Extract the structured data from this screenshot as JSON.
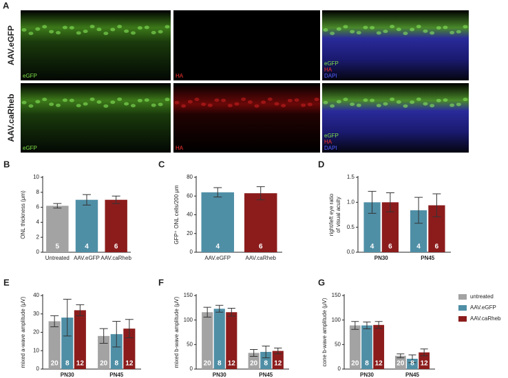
{
  "figure_a": {
    "panel": "A",
    "rows": [
      "AAV.eGFP",
      "AAV.caRheb"
    ],
    "labels": [
      [
        [
          "eGFP"
        ],
        [
          "HA"
        ],
        [
          "eGFP",
          "HA",
          "DAPI"
        ]
      ],
      [
        [
          "eGFP"
        ],
        [
          "HA"
        ],
        [
          "eGFP",
          "HA",
          "DAPI"
        ]
      ]
    ]
  },
  "chart_data": [
    {
      "type": "bar",
      "panel": "B",
      "ylabel": [
        "ONL thickness (μm)"
      ],
      "categories": [
        "Untreated",
        "AAV.eGFP",
        "AAV.caRheb"
      ],
      "values": [
        6.2,
        7.0,
        7.0
      ],
      "errors": [
        0.3,
        0.7,
        0.5
      ],
      "n": [
        5,
        4,
        6
      ],
      "colors": [
        "#a3a3a3",
        "#4f8fa6",
        "#8c1c1c"
      ],
      "ylim": [
        0,
        10
      ],
      "yticks": [
        0,
        2,
        4,
        6,
        8,
        10
      ]
    },
    {
      "type": "bar",
      "panel": "C",
      "ylabel": [
        "GFP⁺ ONL cells/200 μm"
      ],
      "categories": [
        "AAV.eGFP",
        "AAV.caRheb"
      ],
      "values": [
        64,
        63
      ],
      "errors": [
        5,
        7
      ],
      "n": [
        4,
        6
      ],
      "colors": [
        "#4f8fa6",
        "#8c1c1c"
      ],
      "ylim": [
        0,
        80
      ],
      "yticks": [
        0,
        20,
        40,
        60,
        80
      ]
    },
    {
      "type": "grouped-bar",
      "panel": "D",
      "ylabel": [
        "right/left eye ratio",
        "of visual acuity"
      ],
      "categories": [
        "PN30",
        "PN45"
      ],
      "series": [
        {
          "color": "#4f8fa6",
          "values": [
            1.0,
            0.84
          ],
          "errors": [
            0.22,
            0.26
          ],
          "n": [
            4,
            4
          ]
        },
        {
          "color": "#8c1c1c",
          "values": [
            1.0,
            0.94
          ],
          "errors": [
            0.19,
            0.23
          ],
          "n": [
            6,
            6
          ]
        }
      ],
      "ylim": [
        0,
        1.5
      ],
      "yticks": [
        {
          "value": 0,
          "label": "0.0"
        },
        {
          "value": 0.5,
          "label": "0.5"
        },
        {
          "value": 1,
          "label": "1.0"
        },
        {
          "value": 1.5,
          "label": "1.5"
        }
      ]
    },
    {
      "type": "grouped-bar",
      "panel": "E",
      "ylabel": [
        "mixed a-wave amplitude (μV)"
      ],
      "categories": [
        "PN30",
        "PN45"
      ],
      "series": [
        {
          "color": "#a3a3a3",
          "values": [
            26,
            18
          ],
          "errors": [
            3,
            4
          ],
          "n": [
            20,
            20
          ]
        },
        {
          "color": "#4f8fa6",
          "values": [
            28,
            19
          ],
          "errors": [
            10,
            7
          ],
          "n": [
            8,
            8
          ]
        },
        {
          "color": "#8c1c1c",
          "values": [
            32,
            22
          ],
          "errors": [
            3,
            5
          ],
          "n": [
            12,
            12
          ]
        }
      ],
      "ylim": [
        0,
        40
      ],
      "yticks": [
        0,
        10,
        20,
        30,
        40
      ]
    },
    {
      "type": "grouped-bar",
      "panel": "F",
      "ylabel": [
        "mixed b-wave amplitude (μV)"
      ],
      "categories": [
        "PN30",
        "PN45"
      ],
      "series": [
        {
          "color": "#a3a3a3",
          "values": [
            116,
            33
          ],
          "errors": [
            10,
            7
          ],
          "n": [
            20,
            20
          ]
        },
        {
          "color": "#4f8fa6",
          "values": [
            123,
            35
          ],
          "errors": [
            7,
            12
          ],
          "n": [
            8,
            8
          ]
        },
        {
          "color": "#8c1c1c",
          "values": [
            116,
            37
          ],
          "errors": [
            8,
            6
          ],
          "n": [
            12,
            12
          ]
        }
      ],
      "ylim": [
        0,
        150
      ],
      "yticks": [
        0,
        50,
        100,
        150
      ]
    },
    {
      "type": "grouped-bar",
      "panel": "G",
      "ylabel": [
        "cone b-wave amplitude (μV)"
      ],
      "categories": [
        "PN30",
        "PN45"
      ],
      "legend": "right",
      "series": [
        {
          "name": "untreated",
          "color": "#a3a3a3",
          "values": [
            89,
            27
          ],
          "errors": [
            8,
            4
          ],
          "n": [
            20,
            20
          ]
        },
        {
          "name": "AAV.eGFP",
          "color": "#4f8fa6",
          "values": [
            89,
            21
          ],
          "errors": [
            7,
            8
          ],
          "n": [
            8,
            8
          ]
        },
        {
          "name": "AAV.caRheb",
          "color": "#8c1c1c",
          "values": [
            90,
            34
          ],
          "errors": [
            7,
            7
          ],
          "n": [
            12,
            12
          ]
        }
      ],
      "ylim": [
        0,
        150
      ],
      "yticks": [
        0,
        50,
        100,
        150
      ]
    }
  ]
}
